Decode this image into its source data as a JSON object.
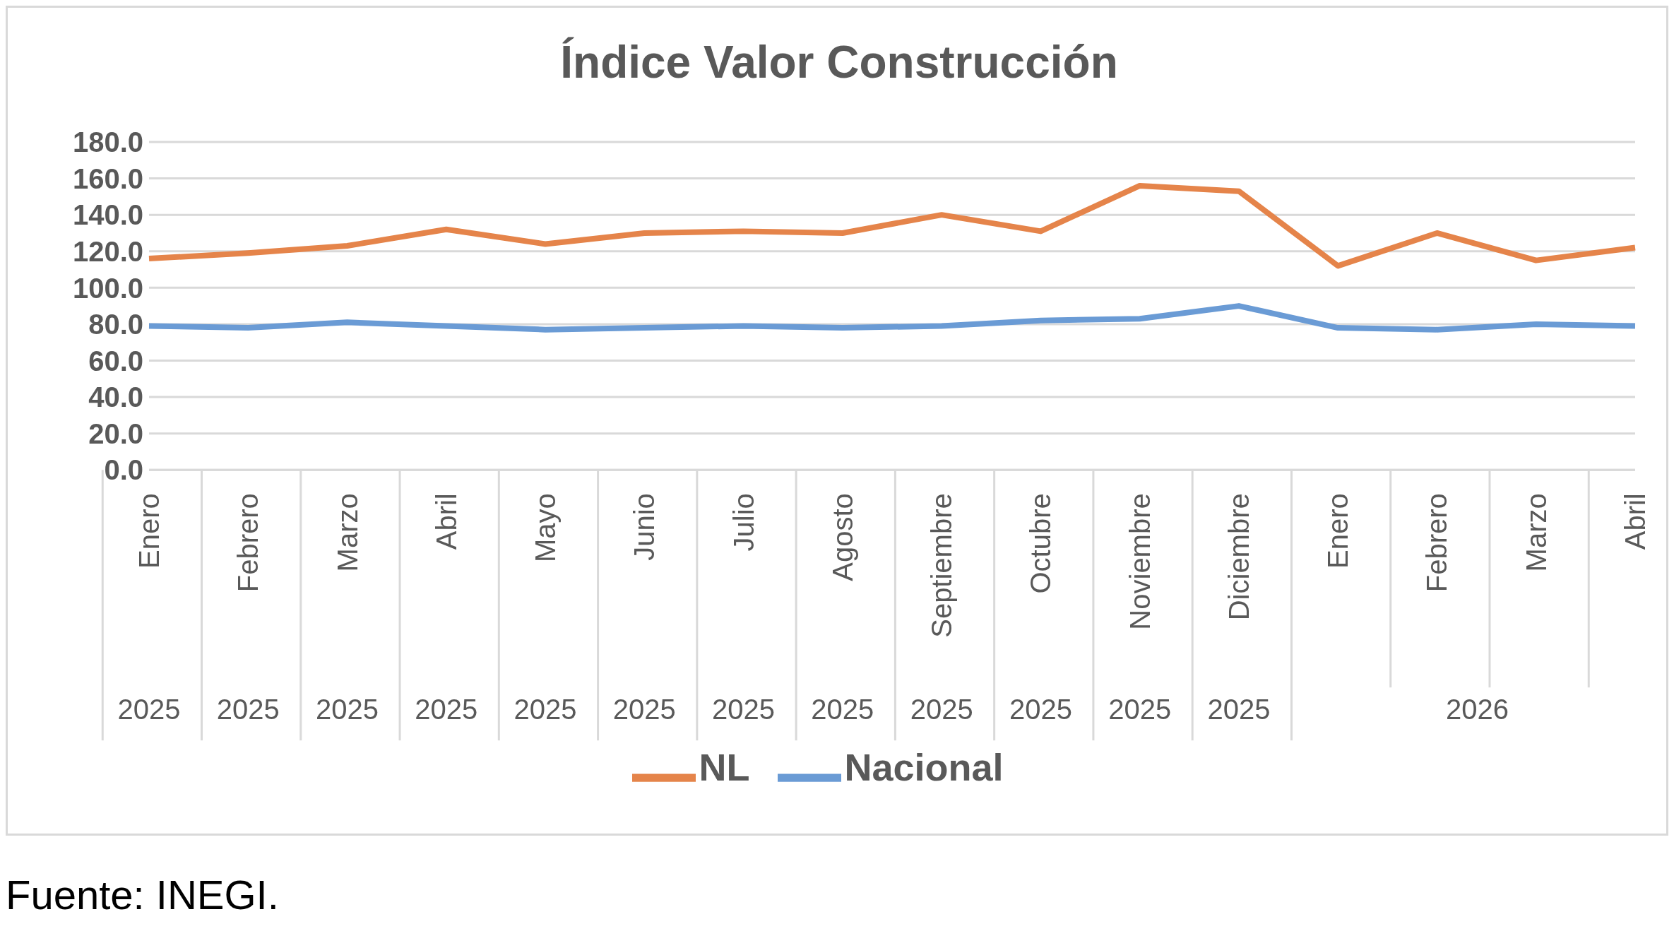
{
  "chart_data": {
    "type": "line",
    "title": "Índice Valor Construcción",
    "categories": [
      "Enero",
      "Febrero",
      "Marzo",
      "Abril",
      "Mayo",
      "Junio",
      "Julio",
      "Agosto",
      "Septiembre",
      "Octubre",
      "Noviembre",
      "Diciembre",
      "Enero",
      "Febrero",
      "Marzo",
      "Abril"
    ],
    "series": [
      {
        "name": "Nacional",
        "color": "#6a9bd5",
        "values": [
          79,
          78,
          81,
          79,
          77,
          78,
          79,
          78,
          79,
          82,
          83,
          90,
          78,
          77,
          80,
          79
        ]
      },
      {
        "name": "NL",
        "color": "#e5844a",
        "values": [
          116,
          119,
          123,
          132,
          124,
          130,
          131,
          130,
          140,
          131,
          156,
          153,
          112,
          130,
          115,
          122
        ]
      }
    ],
    "ylim": [
      0,
      180
    ],
    "yticks": [
      {
        "value": 0,
        "label": "0.0"
      },
      {
        "value": 20,
        "label": "20.0"
      },
      {
        "value": 40,
        "label": "40.0"
      },
      {
        "value": 60,
        "label": "60.0"
      },
      {
        "value": 80,
        "label": "80.0"
      },
      {
        "value": 100,
        "label": "100.0"
      },
      {
        "value": 120,
        "label": "120.0"
      },
      {
        "value": 140,
        "label": "140.0"
      },
      {
        "value": 160,
        "label": "160.0"
      },
      {
        "value": 180,
        "label": "180.0"
      }
    ],
    "grid": "y",
    "legend": "bottom",
    "marker": "none",
    "line_style": "solid",
    "annotations": [
      "2025",
      "2025",
      "2025",
      "2025",
      "2025",
      "2025",
      "2025",
      "2025",
      "2025",
      "2025",
      "2025",
      "2025",
      "2026",
      "Fuente: INEGI."
    ]
  }
}
